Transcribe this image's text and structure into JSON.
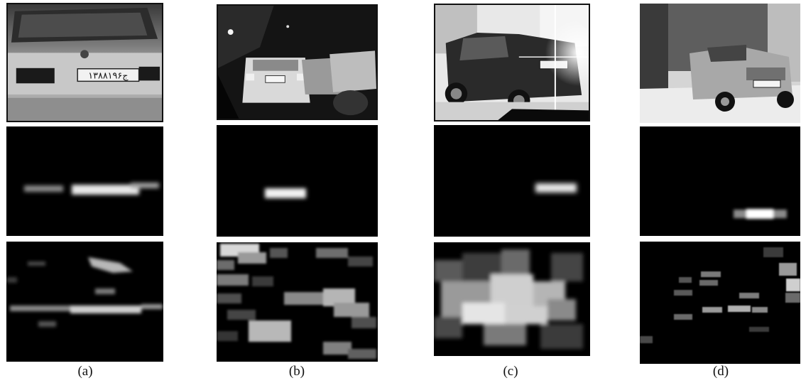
{
  "figure": {
    "columns": [
      {
        "caption": "(a)",
        "plate_text": "۱۳ج۸۸۱۹۶"
      },
      {
        "caption": "(b)"
      },
      {
        "caption": "(c)"
      },
      {
        "caption": "(d)"
      }
    ]
  },
  "colors": {
    "background": "#ffffff",
    "map_bg": "#000000",
    "highlight": "#ffffff"
  }
}
